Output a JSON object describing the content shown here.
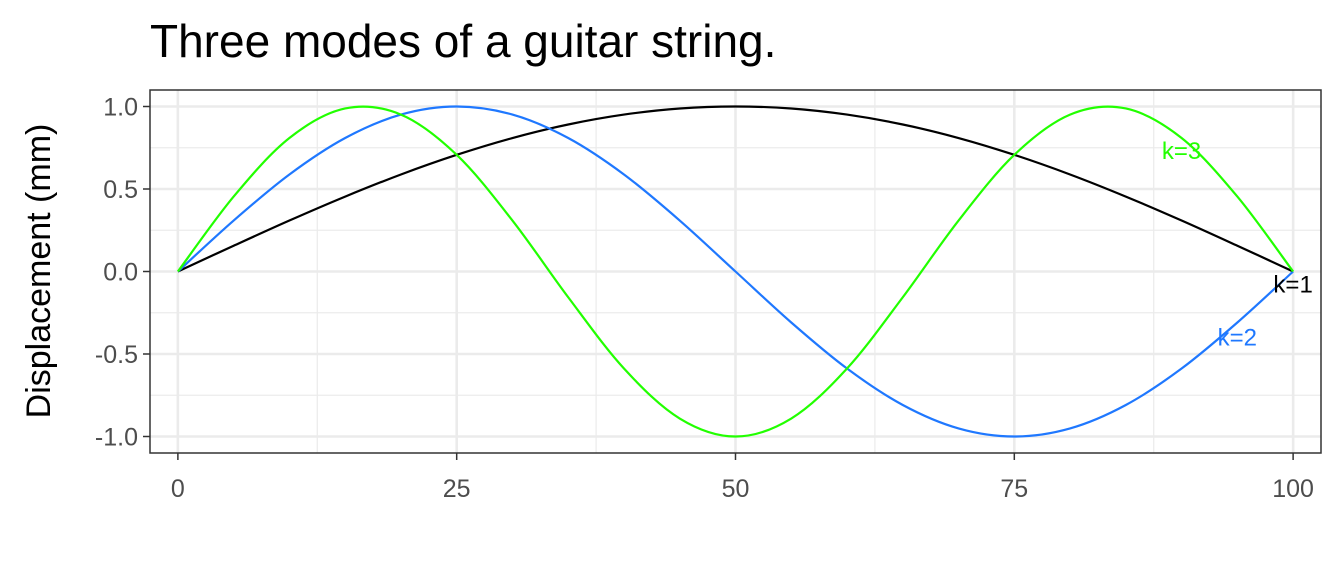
{
  "title": "Three modes of a guitar string.",
  "chart_data": {
    "type": "line",
    "title": "Three modes of a guitar string.",
    "xlabel": "",
    "ylabel": "Displacement (mm)",
    "xlim": [
      -2.5,
      102.5
    ],
    "ylim": [
      -1.1,
      1.1
    ],
    "x_ticks": [
      0,
      25,
      50,
      75,
      100
    ],
    "x_tick_labels": [
      "0",
      "25",
      "50",
      "75",
      "100"
    ],
    "y_ticks": [
      -1.0,
      -0.5,
      0.0,
      0.5,
      1.0
    ],
    "y_tick_labels": [
      "-1.0",
      "-0.5",
      "0.0",
      "0.5",
      "1.0"
    ],
    "grid": true,
    "x": [
      0,
      5,
      10,
      15,
      20,
      25,
      30,
      35,
      40,
      45,
      50,
      55,
      60,
      65,
      70,
      75,
      80,
      85,
      90,
      95,
      100
    ],
    "series": [
      {
        "name": "k=1",
        "color": "#000000",
        "label_at": [
          100,
          -0.08
        ],
        "values": [
          0,
          0.156,
          0.309,
          0.454,
          0.588,
          0.707,
          0.809,
          0.891,
          0.951,
          0.988,
          1.0,
          0.988,
          0.951,
          0.891,
          0.809,
          0.707,
          0.588,
          0.454,
          0.309,
          0.156,
          0
        ]
      },
      {
        "name": "k=2",
        "color": "#1f78ff",
        "label_at": [
          95,
          -0.4
        ],
        "values": [
          0,
          0.309,
          0.588,
          0.809,
          0.951,
          1.0,
          0.951,
          0.809,
          0.588,
          0.309,
          0,
          -0.309,
          -0.588,
          -0.809,
          -0.951,
          -1.0,
          -0.951,
          -0.809,
          -0.588,
          -0.309,
          0
        ]
      },
      {
        "name": "k=3",
        "color": "#22ff00",
        "label_at": [
          90,
          0.73
        ],
        "values": [
          0,
          0.454,
          0.809,
          0.988,
          0.951,
          0.707,
          0.309,
          -0.156,
          -0.588,
          -0.891,
          -1.0,
          -0.891,
          -0.588,
          -0.156,
          0.309,
          0.707,
          0.951,
          0.988,
          0.809,
          0.454,
          0
        ]
      }
    ]
  }
}
